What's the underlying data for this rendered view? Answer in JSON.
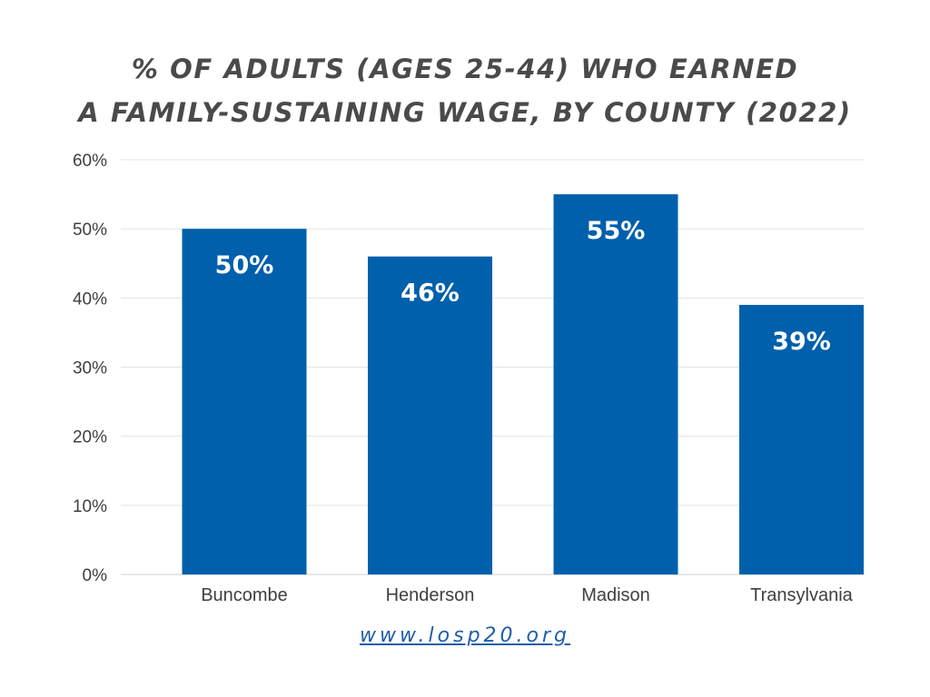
{
  "chart_data": {
    "type": "bar",
    "title_lines": [
      "% OF ADULTS (AGES 25-44) WHO EARNED",
      "A FAMILY-SUSTAINING WAGE, BY COUNTY (2022)"
    ],
    "categories": [
      "Buncombe",
      "Henderson",
      "Madison",
      "Transylvania"
    ],
    "values": [
      50,
      46,
      55,
      39
    ],
    "value_labels": [
      "50%",
      "46%",
      "55%",
      "39%"
    ],
    "ylim": [
      0,
      60
    ],
    "yticks": [
      0,
      10,
      20,
      30,
      40,
      50,
      60
    ],
    "ytick_labels": [
      "0%",
      "10%",
      "20%",
      "30%",
      "40%",
      "50%",
      "60%"
    ],
    "xlabel": "",
    "ylabel": "",
    "grid": true,
    "legend": "none",
    "bar_color": "#0160ab"
  },
  "footer": {
    "link_text": "www.losp20.org"
  },
  "colors": {
    "title": "#4a4a4a",
    "gridline": "#e3e3e3",
    "axis_text": "#3f3f3f",
    "link": "#1f5ea8"
  }
}
